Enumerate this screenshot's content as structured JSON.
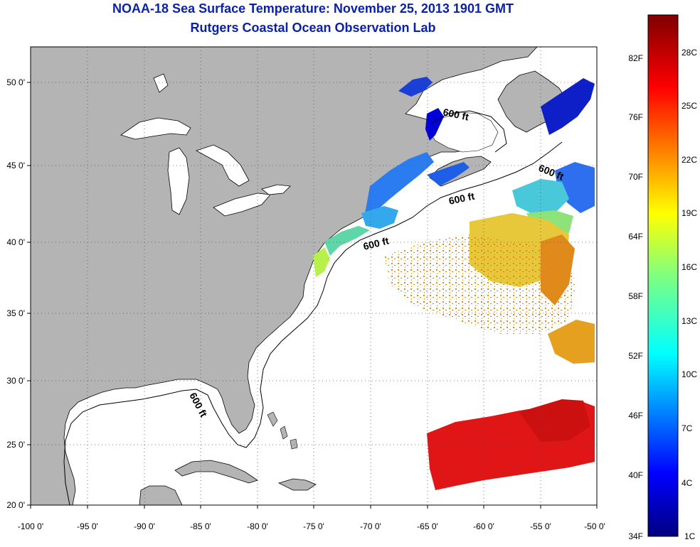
{
  "title": "NOAA-18 Sea Surface Temperature:  November 25, 2013 1901 GMT",
  "subtitle": "Rutgers Coastal Ocean Observation Lab",
  "map": {
    "lon_labels": [
      "-100 0'",
      "-95 0'",
      "-90 0'",
      "-85 0'",
      "-80 0'",
      "-75 0'",
      "-70 0'",
      "-65 0'",
      "-60 0'",
      "-55 0'",
      "-50 0'"
    ],
    "lat_labels": [
      "50 0'",
      "45 0'",
      "40 0'",
      "35 0'",
      "30 0'",
      "25 0'",
      "20 0'"
    ],
    "contour_labels": [
      "600 ft",
      "600 ft",
      "600 ft",
      "600 ft",
      "600 ft"
    ],
    "colors": {
      "land": "#b4b4b4",
      "ocean": "#ffffff",
      "grid": "#555555"
    }
  },
  "colorbar": {
    "fahrenheit": [
      "82F",
      "76F",
      "70F",
      "64F",
      "58F",
      "52F",
      "46F",
      "40F",
      "34F"
    ],
    "celsius": [
      "28C",
      "25C",
      "22C",
      "19C",
      "16C",
      "13C",
      "10C",
      "7C",
      "4C",
      "1C"
    ]
  }
}
